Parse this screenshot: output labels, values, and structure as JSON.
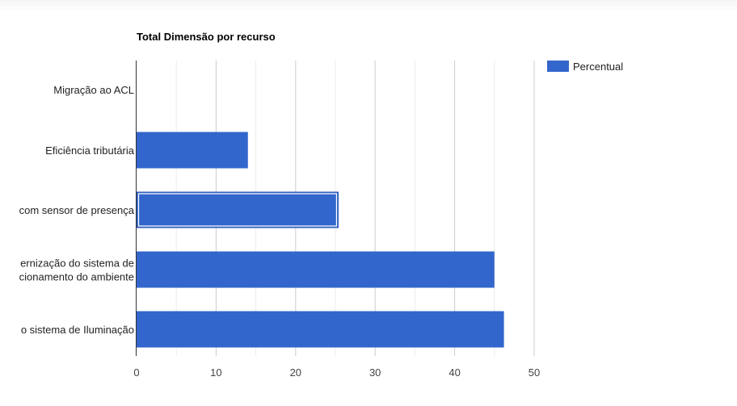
{
  "chart_data": {
    "type": "bar",
    "orientation": "horizontal",
    "title": "Total Dimensão por recurso",
    "categories": [
      [
        "Migração ao ACL"
      ],
      [
        "Eficiência tributária"
      ],
      [
        "com sensor de presença"
      ],
      [
        "ernização do sistema de",
        "cionamento do ambiente"
      ],
      [
        "o sistema de Iluminação"
      ]
    ],
    "series": [
      {
        "name": "Percentual",
        "color": "#3366cc",
        "values": [
          0,
          14,
          25.4,
          45,
          46.2
        ]
      }
    ],
    "selected_index": 2,
    "xlim": [
      0,
      50
    ],
    "xticks": [
      0,
      10,
      20,
      30,
      40,
      50
    ],
    "grid": true,
    "legend_position": "right"
  }
}
